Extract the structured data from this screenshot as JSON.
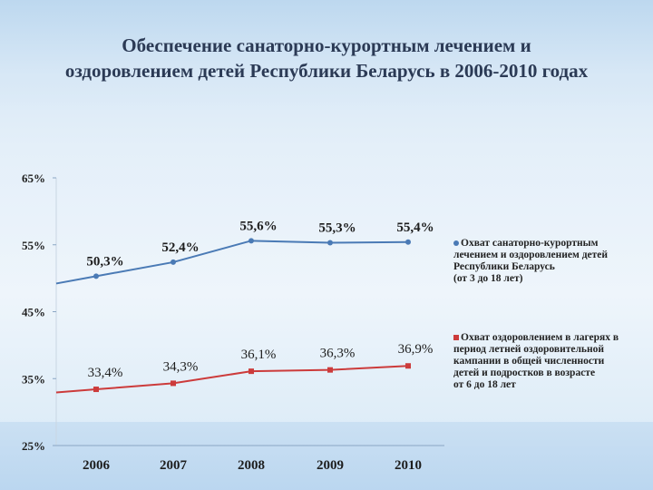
{
  "title": {
    "line1": "Обеспечение санаторно-курортным лечением и",
    "line2": "оздоровлением детей Республики Беларусь в 2006-2010 годах"
  },
  "chart_data": {
    "type": "line",
    "title": "Обеспечение санаторно-курортным лечением и оздоровлением детей Республики Беларусь в 2006-2010 годах",
    "categories": [
      "2006",
      "2007",
      "2008",
      "2009",
      "2010"
    ],
    "ylim": [
      25,
      65
    ],
    "yticks": [
      "25%",
      "35%",
      "45%",
      "55%",
      "65%"
    ],
    "ytick_values": [
      25,
      35,
      45,
      55,
      65
    ],
    "grid": false,
    "legend_position": "right",
    "series": [
      {
        "name": "Охват санаторно-курортным лечением и оздоровлением детей Республики Беларусь (от 3 до 18 лет)",
        "name_lines": [
          "Охват санаторно-курортным",
          "лечением и оздоровлением детей",
          "Республики Беларусь",
          "(от 3 до 18 лет)"
        ],
        "values": [
          50.3,
          52.4,
          55.6,
          55.3,
          55.4
        ],
        "labels": [
          "50,3%",
          "52,4%",
          "55,6%",
          "55,3%",
          "55,4%"
        ],
        "color": "#4a7ab5"
      },
      {
        "name": "Охват оздоровлением в лагерях в период летней оздоровительной кампании в общей численности детей и подростков в возрасте от 6 до 18 лет",
        "name_lines": [
          "Охват оздоровлением в лагерях в",
          "период летней оздоровительной",
          "кампании в общей численности",
          "детей и подростков в возрасте",
          "от 6 до 18 лет"
        ],
        "values": [
          33.4,
          34.3,
          36.1,
          36.3,
          36.9
        ],
        "labels": [
          "33,4%",
          "34,3%",
          "36,1%",
          "36,3%",
          "36,9%"
        ],
        "color": "#cc3b3b"
      }
    ]
  }
}
